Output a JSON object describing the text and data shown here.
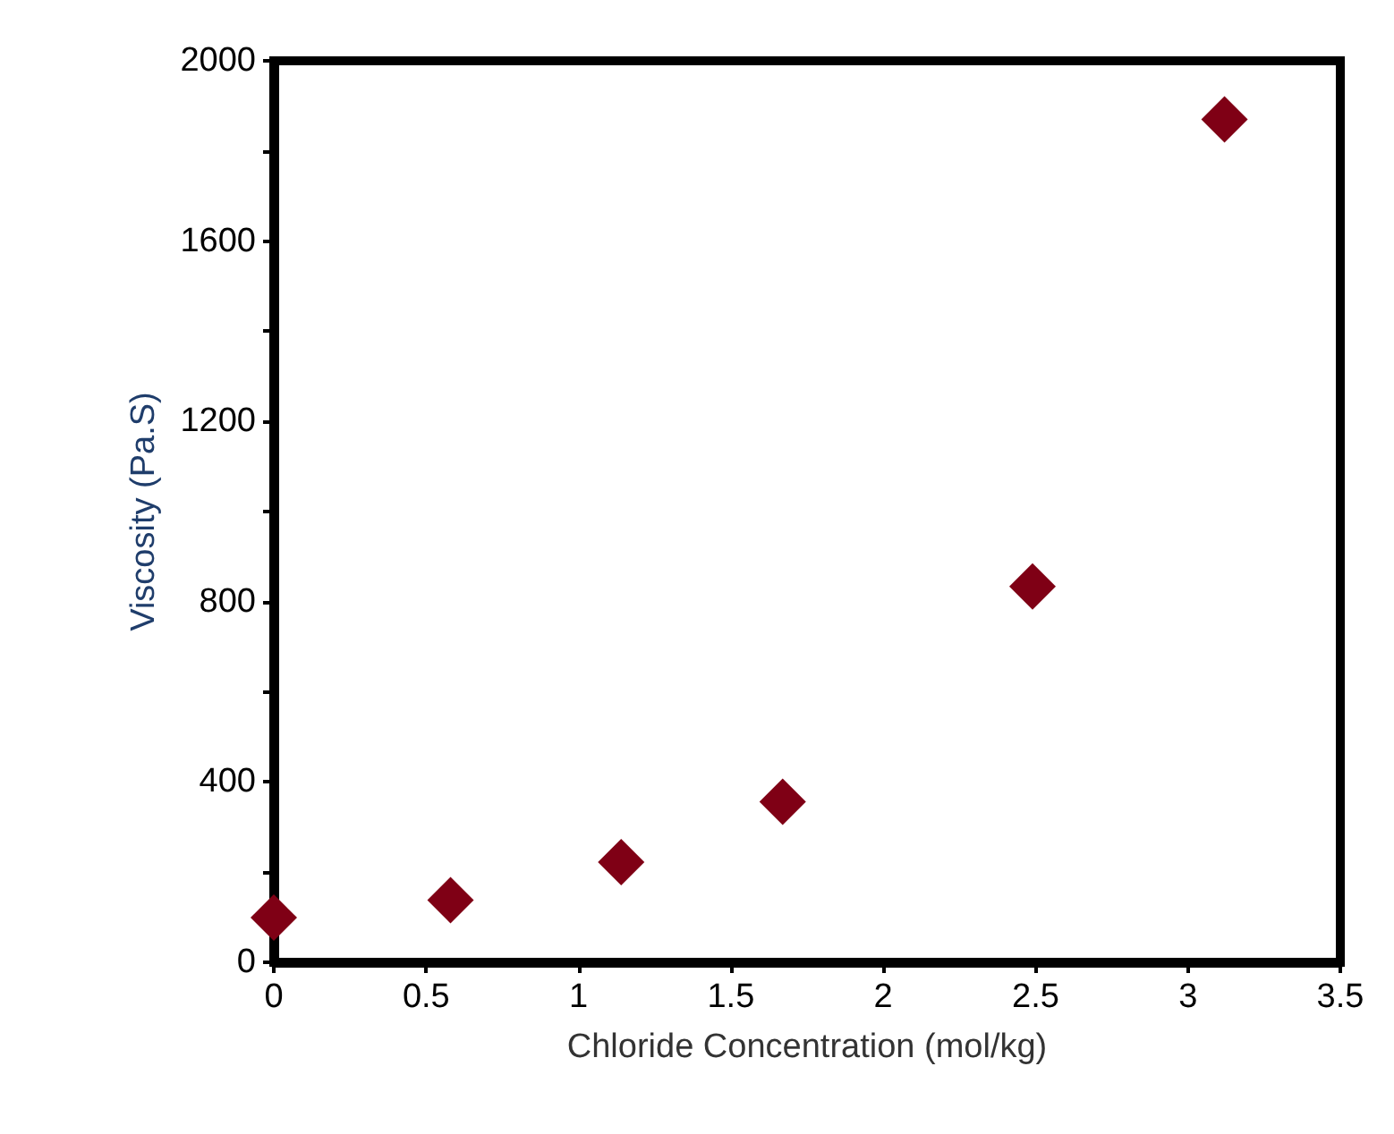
{
  "chart_data": {
    "type": "scatter",
    "xlabel": "Chloride Concentration (mol/kg)",
    "ylabel": "Viscosity (Pa.S)",
    "x": [
      0,
      0.58,
      1.14,
      1.67,
      2.49,
      3.12
    ],
    "series": [
      {
        "color": "#7f0015",
        "values": [
          99,
          138,
          222,
          356,
          834,
          1870
        ]
      }
    ],
    "xlim": [
      0,
      3.5
    ],
    "xticks": [
      0,
      0.5,
      1,
      1.5,
      2,
      2.5,
      3,
      3.5
    ],
    "ylim": [
      0,
      2000
    ],
    "yticks": [
      0,
      {
        "value": 200,
        "label": null
      },
      400,
      {
        "value": 600,
        "label": null
      },
      800,
      {
        "value": 1000,
        "label": null
      },
      1200,
      {
        "value": 1400,
        "label": null
      },
      1600,
      {
        "value": 1800,
        "label": null
      },
      2000
    ],
    "marker": "diamond"
  }
}
